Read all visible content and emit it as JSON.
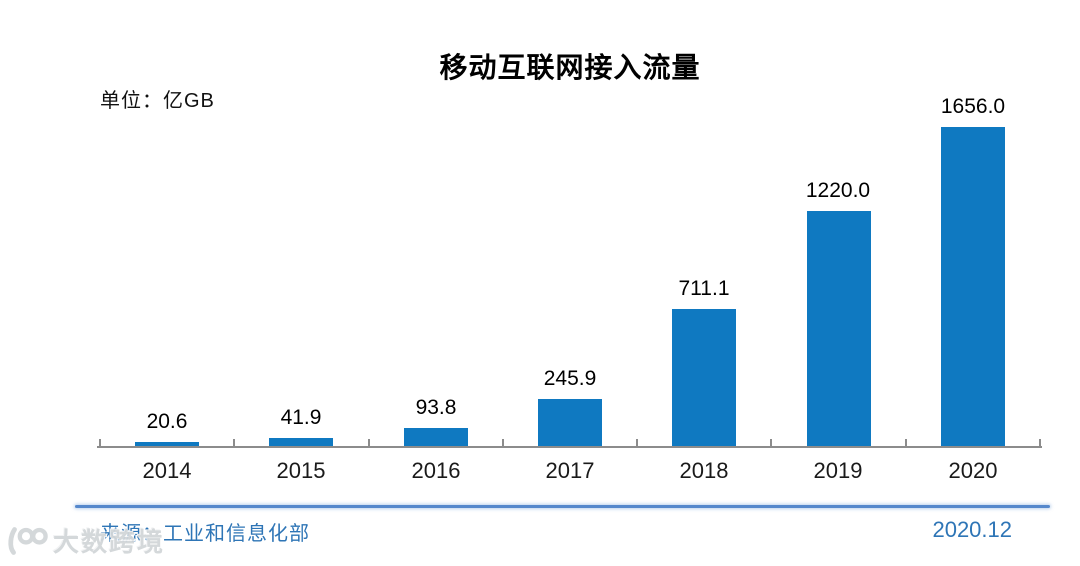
{
  "header": {
    "title": "移动互联网接入流量",
    "unit_label": "单位：亿GB"
  },
  "chart_data": {
    "type": "bar",
    "title": "移动互联网接入流量",
    "xlabel": "",
    "ylabel": "亿GB",
    "categories": [
      "2014",
      "2015",
      "2016",
      "2017",
      "2018",
      "2019",
      "2020"
    ],
    "values": [
      20.6,
      41.9,
      93.8,
      245.9,
      711.1,
      1220.0,
      1656.0
    ],
    "value_labels": [
      "20.6",
      "41.9",
      "93.8",
      "245.9",
      "711.1",
      "1220.0",
      "1656.0"
    ],
    "ylim": [
      0,
      1720
    ],
    "grid": false,
    "legend": false,
    "bar_color": "#0f79c1",
    "axis_color": "#8c8c8c"
  },
  "footer": {
    "source": "来源：工业和信息化部",
    "date": "2020.12",
    "divider_color": "#5588cc",
    "text_color": "#2e75b6"
  },
  "watermark": {
    "logo": "100-logo",
    "text": "大数跨境"
  }
}
